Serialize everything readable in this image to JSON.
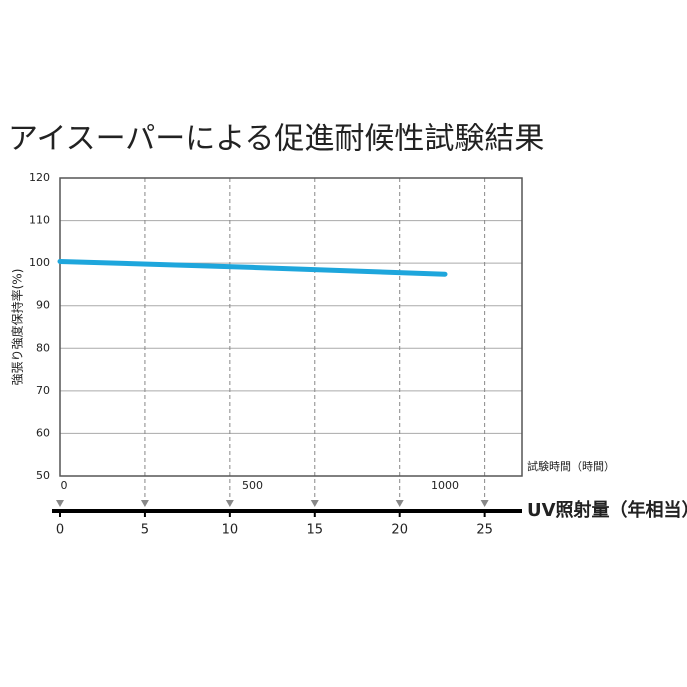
{
  "chart_data": {
    "type": "line",
    "title": "アイスーパーによる促進耐候性試験結果",
    "y_label": "強張り強度保持率(%)",
    "x_label": "試験時間（時間）",
    "x2_label": "UV照射量（年相当）",
    "x": [
      0,
      500,
      1000
    ],
    "values": [
      100.4,
      99.0,
      97.4
    ],
    "color": "#1ea6dc",
    "xlim": [
      0,
      1200
    ],
    "xticks": [
      0,
      500,
      1000
    ],
    "x2lim": [
      0,
      27.2
    ],
    "x2ticks": [
      0,
      5,
      10,
      15,
      20,
      25
    ],
    "ylim": [
      50,
      120
    ],
    "yticks": [
      50,
      60,
      70,
      80,
      90,
      100,
      110,
      120
    ],
    "grid": true
  }
}
